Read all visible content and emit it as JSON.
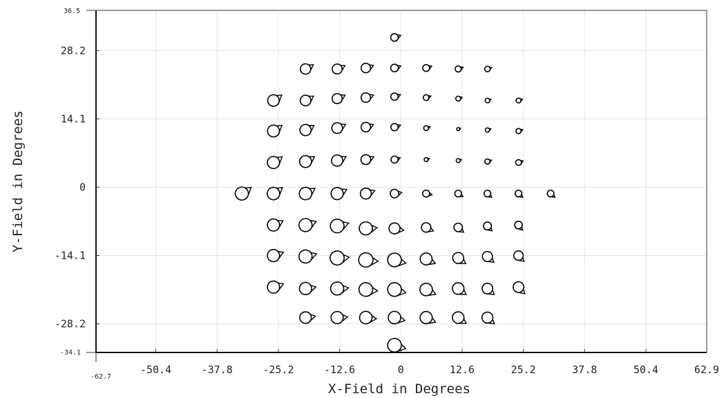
{
  "chart_data": {
    "type": "scatter",
    "title": "",
    "xlabel": "X-Field in Degrees",
    "ylabel": "Y-Field in Degrees",
    "xlim": [
      -62.7,
      62.9
    ],
    "ylim": [
      -34.1,
      36.5
    ],
    "xlim_labels": [
      "-62.7",
      "62.9"
    ],
    "ylim_labels": [
      "-34.1",
      "36.5"
    ],
    "x_ticks": [
      -50.4,
      -37.8,
      -25.2,
      -12.6,
      0,
      12.6,
      25.2,
      37.8,
      50.4,
      62.9
    ],
    "x_tick_labels": [
      "-50.4",
      "-37.8",
      "-25.2",
      "-12.6",
      "0",
      "12.6",
      "25.2",
      "37.8",
      "50.4",
      "62.9"
    ],
    "y_ticks": [
      28.2,
      14.1,
      0,
      -14.1,
      -28.2
    ],
    "y_tick_labels": [
      "28.2",
      "14.1",
      "0",
      "-14.1",
      "-28.2"
    ],
    "grid": true,
    "marker": "circle-with-tail",
    "points": [
      {
        "x": -1.3,
        "y": 30.9,
        "size": 0.5,
        "angle": 0
      },
      {
        "x": -19.6,
        "y": 24.4,
        "size": 0.68,
        "angle": 10
      },
      {
        "x": -13.1,
        "y": 24.4,
        "size": 0.65,
        "angle": 5
      },
      {
        "x": -7.2,
        "y": 24.6,
        "size": 0.62,
        "angle": 0
      },
      {
        "x": -1.3,
        "y": 24.6,
        "size": 0.5,
        "angle": 0
      },
      {
        "x": 5.2,
        "y": 24.6,
        "size": 0.45,
        "angle": 0
      },
      {
        "x": 11.8,
        "y": 24.4,
        "size": 0.4,
        "angle": 0
      },
      {
        "x": 17.8,
        "y": 24.4,
        "size": 0.36,
        "angle": 0
      },
      {
        "x": -26.2,
        "y": 17.9,
        "size": 0.76,
        "angle": 15
      },
      {
        "x": -19.6,
        "y": 17.9,
        "size": 0.7,
        "angle": 10
      },
      {
        "x": -13.1,
        "y": 18.3,
        "size": 0.66,
        "angle": 5
      },
      {
        "x": -7.2,
        "y": 18.5,
        "size": 0.62,
        "angle": 0
      },
      {
        "x": -1.3,
        "y": 18.7,
        "size": 0.48,
        "angle": 0
      },
      {
        "x": 5.2,
        "y": 18.5,
        "size": 0.38,
        "angle": 0
      },
      {
        "x": 11.8,
        "y": 18.3,
        "size": 0.32,
        "angle": 0
      },
      {
        "x": 17.8,
        "y": 17.9,
        "size": 0.3,
        "angle": 0
      },
      {
        "x": 24.2,
        "y": 17.9,
        "size": 0.32,
        "angle": 0
      },
      {
        "x": -26.2,
        "y": 11.6,
        "size": 0.78,
        "angle": 15
      },
      {
        "x": -19.6,
        "y": 11.8,
        "size": 0.74,
        "angle": 10
      },
      {
        "x": -13.1,
        "y": 12.2,
        "size": 0.7,
        "angle": 5
      },
      {
        "x": -7.2,
        "y": 12.4,
        "size": 0.62,
        "angle": 0
      },
      {
        "x": -1.3,
        "y": 12.4,
        "size": 0.48,
        "angle": 0
      },
      {
        "x": 5.2,
        "y": 12.2,
        "size": 0.32,
        "angle": 0
      },
      {
        "x": 11.8,
        "y": 12.0,
        "size": 0.2,
        "angle": 0
      },
      {
        "x": 17.8,
        "y": 11.8,
        "size": 0.28,
        "angle": 0
      },
      {
        "x": 24.2,
        "y": 11.6,
        "size": 0.34,
        "angle": 0
      },
      {
        "x": -26.2,
        "y": 5.1,
        "size": 0.8,
        "angle": 15
      },
      {
        "x": -19.6,
        "y": 5.3,
        "size": 0.78,
        "angle": 10
      },
      {
        "x": -13.1,
        "y": 5.5,
        "size": 0.74,
        "angle": 5
      },
      {
        "x": -7.2,
        "y": 5.7,
        "size": 0.64,
        "angle": 0
      },
      {
        "x": -1.3,
        "y": 5.7,
        "size": 0.46,
        "angle": 0
      },
      {
        "x": 5.2,
        "y": 5.7,
        "size": 0.26,
        "angle": 0
      },
      {
        "x": 11.8,
        "y": 5.5,
        "size": 0.26,
        "angle": 0
      },
      {
        "x": 17.8,
        "y": 5.3,
        "size": 0.34,
        "angle": 0
      },
      {
        "x": 24.2,
        "y": 5.1,
        "size": 0.38,
        "angle": 0
      },
      {
        "x": -32.7,
        "y": -1.3,
        "size": 0.86,
        "angle": 15
      },
      {
        "x": -26.2,
        "y": -1.3,
        "size": 0.82,
        "angle": 15
      },
      {
        "x": -19.6,
        "y": -1.3,
        "size": 0.82,
        "angle": 10
      },
      {
        "x": -13.1,
        "y": -1.3,
        "size": 0.8,
        "angle": 5
      },
      {
        "x": -7.2,
        "y": -1.3,
        "size": 0.72,
        "angle": 0
      },
      {
        "x": -1.3,
        "y": -1.3,
        "size": 0.56,
        "angle": -10
      },
      {
        "x": 5.2,
        "y": -1.3,
        "size": 0.46,
        "angle": -30
      },
      {
        "x": 11.8,
        "y": -1.3,
        "size": 0.44,
        "angle": -50
      },
      {
        "x": 17.8,
        "y": -1.3,
        "size": 0.44,
        "angle": -60
      },
      {
        "x": 24.2,
        "y": -1.3,
        "size": 0.44,
        "angle": -60
      },
      {
        "x": 30.8,
        "y": -1.3,
        "size": 0.44,
        "angle": -60
      },
      {
        "x": -26.2,
        "y": -7.8,
        "size": 0.8,
        "angle": 5
      },
      {
        "x": -19.6,
        "y": -7.8,
        "size": 0.86,
        "angle": 0
      },
      {
        "x": -13.1,
        "y": -8.0,
        "size": 0.9,
        "angle": -5
      },
      {
        "x": -7.2,
        "y": -8.5,
        "size": 0.86,
        "angle": -15
      },
      {
        "x": -1.3,
        "y": -8.5,
        "size": 0.72,
        "angle": -30
      },
      {
        "x": 5.2,
        "y": -8.3,
        "size": 0.62,
        "angle": -45
      },
      {
        "x": 11.8,
        "y": -8.3,
        "size": 0.56,
        "angle": -60
      },
      {
        "x": 17.8,
        "y": -8.0,
        "size": 0.52,
        "angle": -65
      },
      {
        "x": 24.2,
        "y": -7.8,
        "size": 0.5,
        "angle": -70
      },
      {
        "x": -26.2,
        "y": -14.1,
        "size": 0.8,
        "angle": 0
      },
      {
        "x": -19.6,
        "y": -14.3,
        "size": 0.86,
        "angle": -5
      },
      {
        "x": -13.1,
        "y": -14.6,
        "size": 0.92,
        "angle": -15
      },
      {
        "x": -7.2,
        "y": -15.0,
        "size": 0.94,
        "angle": -25
      },
      {
        "x": -1.3,
        "y": -15.0,
        "size": 0.9,
        "angle": -35
      },
      {
        "x": 5.2,
        "y": -14.8,
        "size": 0.78,
        "angle": -45
      },
      {
        "x": 11.8,
        "y": -14.6,
        "size": 0.72,
        "angle": -55
      },
      {
        "x": 17.8,
        "y": -14.3,
        "size": 0.66,
        "angle": -60
      },
      {
        "x": 24.2,
        "y": -14.1,
        "size": 0.62,
        "angle": -65
      },
      {
        "x": -26.2,
        "y": -20.6,
        "size": 0.8,
        "angle": 0
      },
      {
        "x": -19.6,
        "y": -20.9,
        "size": 0.8,
        "angle": -10
      },
      {
        "x": -13.1,
        "y": -20.9,
        "size": 0.86,
        "angle": -15
      },
      {
        "x": -7.2,
        "y": -21.1,
        "size": 0.9,
        "angle": -25
      },
      {
        "x": -1.3,
        "y": -21.1,
        "size": 0.9,
        "angle": -35
      },
      {
        "x": 5.2,
        "y": -21.1,
        "size": 0.82,
        "angle": -45
      },
      {
        "x": 11.8,
        "y": -20.9,
        "size": 0.76,
        "angle": -55
      },
      {
        "x": 17.8,
        "y": -20.9,
        "size": 0.7,
        "angle": -60
      },
      {
        "x": 24.2,
        "y": -20.6,
        "size": 0.7,
        "angle": -65
      },
      {
        "x": -19.6,
        "y": -26.9,
        "size": 0.76,
        "angle": -10
      },
      {
        "x": -13.1,
        "y": -26.9,
        "size": 0.8,
        "angle": -15
      },
      {
        "x": -7.2,
        "y": -26.9,
        "size": 0.82,
        "angle": -25
      },
      {
        "x": -1.3,
        "y": -26.9,
        "size": 0.82,
        "angle": -35
      },
      {
        "x": 5.2,
        "y": -26.9,
        "size": 0.8,
        "angle": -45
      },
      {
        "x": 11.8,
        "y": -26.9,
        "size": 0.76,
        "angle": -55
      },
      {
        "x": 17.8,
        "y": -26.9,
        "size": 0.72,
        "angle": -60
      },
      {
        "x": -1.3,
        "y": -32.6,
        "size": 0.9,
        "angle": -35
      }
    ]
  }
}
